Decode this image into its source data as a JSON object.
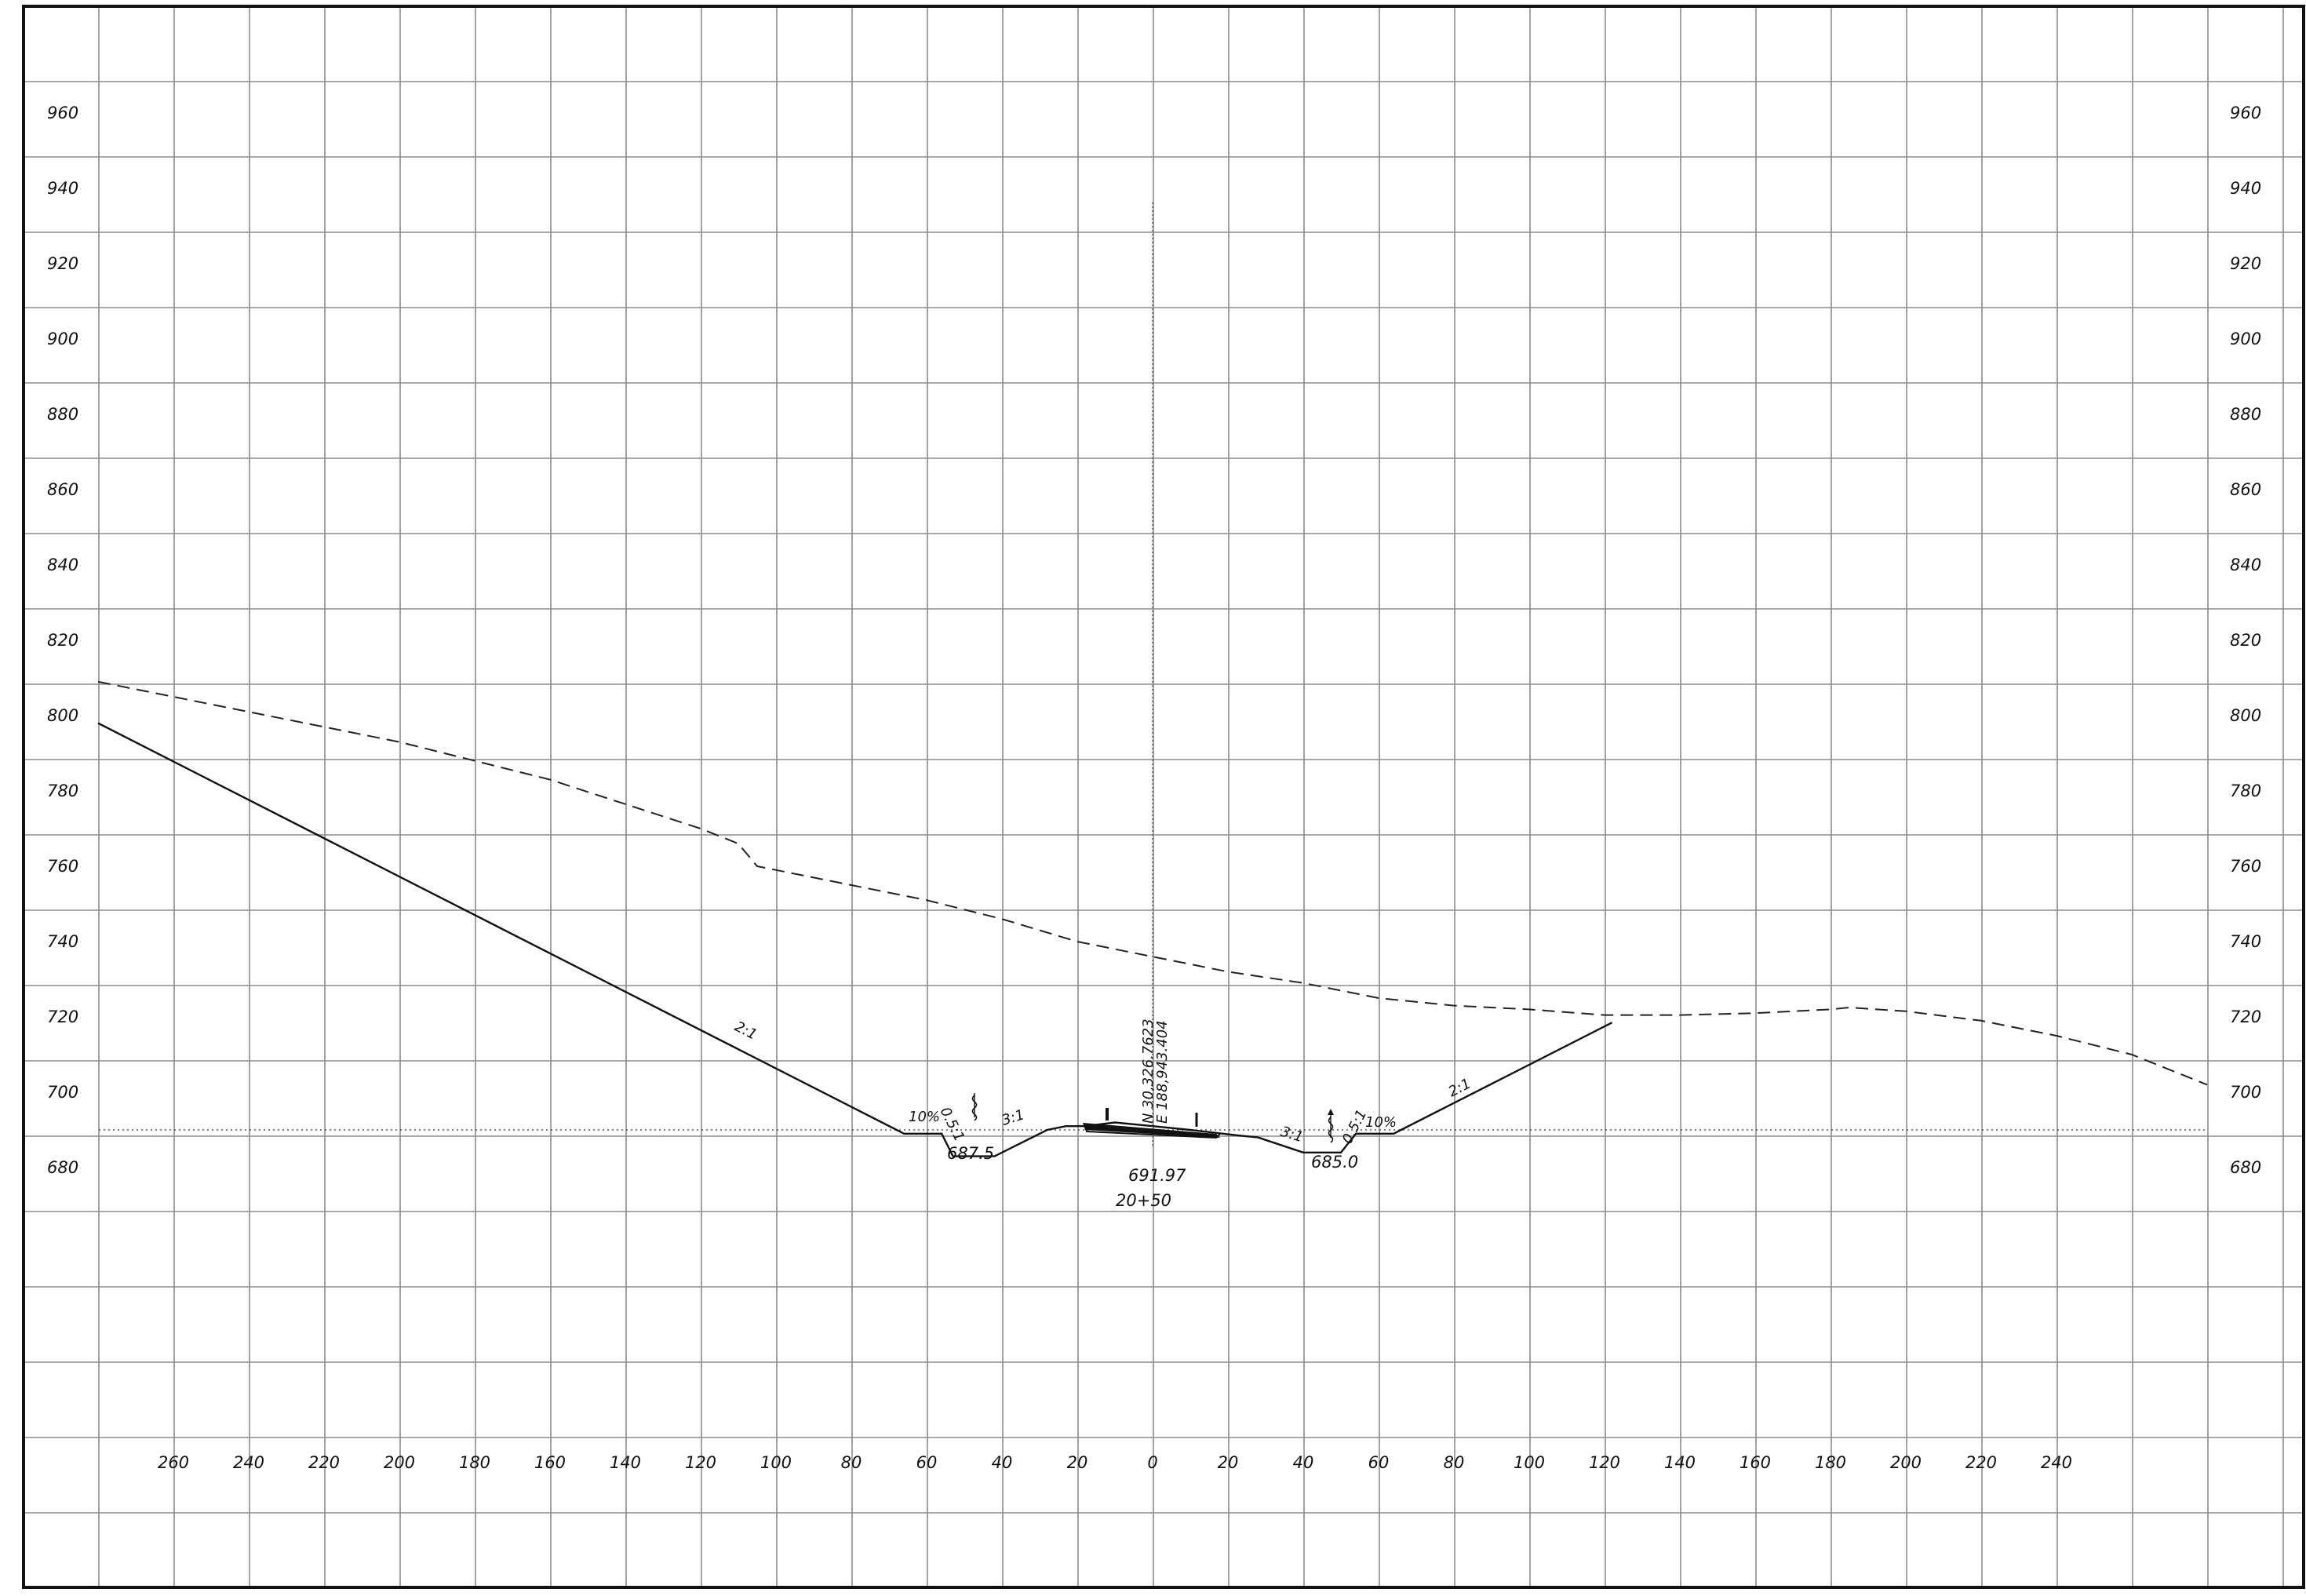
{
  "drawing": {
    "station_label": "20+50",
    "centerline_elevation": "691.97",
    "northing": "N 30,326.7623",
    "easting": "E 188,943.404",
    "left_ditch_elevation": "687.5",
    "right_ditch_elevation": "685.0",
    "slope_labels": {
      "left_cut": "2:1",
      "left_shoulder": "10%",
      "left_ditch_foreslope": "0.5:1",
      "left_backslope": "3:1",
      "right_backslope": "3:1",
      "right_ditch_foreslope": "0.5:1",
      "right_shoulder": "10%",
      "right_cut": "2:1"
    },
    "elevation_labels": [
      "960",
      "940",
      "920",
      "900",
      "880",
      "860",
      "840",
      "820",
      "800",
      "780",
      "760",
      "740",
      "720",
      "700",
      "680"
    ],
    "offset_labels": [
      "260",
      "240",
      "220",
      "200",
      "180",
      "160",
      "140",
      "120",
      "100",
      "80",
      "60",
      "40",
      "20",
      "0",
      "20",
      "40",
      "60",
      "80",
      "100",
      "120",
      "140",
      "160",
      "180",
      "200",
      "220",
      "240"
    ]
  },
  "chart_data": {
    "type": "cross-section",
    "x_unit": "ft offset from centerline (left negative)",
    "y_unit": "ft elevation",
    "x_range": [
      -280,
      280
    ],
    "y_range": [
      640,
      980
    ],
    "grid": "on, 20 ft both directions",
    "existing_ground": [
      [
        -280,
        809
      ],
      [
        -240,
        801
      ],
      [
        -200,
        793
      ],
      [
        -160,
        783
      ],
      [
        -120,
        770
      ],
      [
        -110,
        766
      ],
      [
        -105,
        760
      ],
      [
        -90,
        757
      ],
      [
        -80,
        755
      ],
      [
        -60,
        751
      ],
      [
        -40,
        746
      ],
      [
        -20,
        740
      ],
      [
        0,
        736
      ],
      [
        20,
        732
      ],
      [
        40,
        729
      ],
      [
        60,
        725
      ],
      [
        80,
        723
      ],
      [
        100,
        722
      ],
      [
        120,
        720.5
      ],
      [
        140,
        720.5
      ],
      [
        160,
        721
      ],
      [
        180,
        722
      ],
      [
        185,
        722.5
      ],
      [
        200,
        721.5
      ],
      [
        220,
        719
      ],
      [
        240,
        715
      ],
      [
        260,
        710
      ],
      [
        280,
        702
      ]
    ],
    "proposed_section": [
      [
        -280,
        798
      ],
      [
        -66,
        689
      ],
      [
        -56,
        689
      ],
      [
        -53,
        683
      ],
      [
        -42,
        683
      ],
      [
        -28,
        690
      ],
      [
        -23,
        691
      ],
      [
        -18,
        691
      ],
      [
        -10,
        691.97
      ],
      [
        0,
        691
      ],
      [
        10,
        690
      ],
      [
        23,
        688.5
      ],
      [
        28,
        688
      ],
      [
        40,
        684
      ],
      [
        50,
        684
      ],
      [
        54,
        689
      ],
      [
        64,
        689
      ],
      [
        122,
        718.5
      ]
    ],
    "reference_elevation": 690
  }
}
